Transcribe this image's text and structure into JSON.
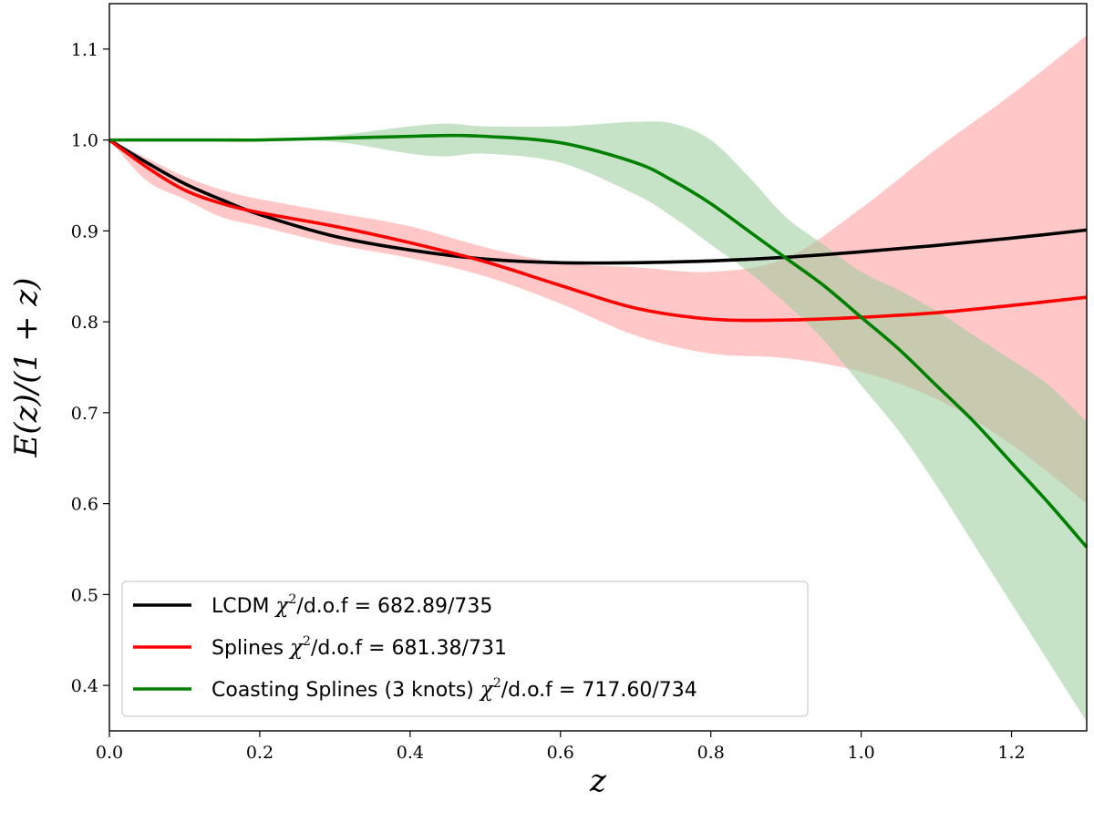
{
  "chart_data": {
    "type": "line",
    "title": "",
    "xlabel": "z",
    "ylabel": "E(z)/(1 + z)",
    "xlim": [
      0.0,
      1.3
    ],
    "ylim": [
      0.35,
      1.15
    ],
    "xticks": [
      0.0,
      0.2,
      0.4,
      0.6,
      0.8,
      1.0,
      1.2
    ],
    "xtick_labels": [
      "0.0",
      "0.2",
      "0.4",
      "0.6",
      "0.8",
      "1.0",
      "1.2"
    ],
    "yticks": [
      0.4,
      0.5,
      0.6,
      0.7,
      0.8,
      0.9,
      1.0,
      1.1
    ],
    "ytick_labels": [
      "0.4",
      "0.5",
      "0.6",
      "0.7",
      "0.8",
      "0.9",
      "1.0",
      "1.1"
    ],
    "grid": false,
    "legend_position": "lower-left",
    "series": [
      {
        "name": "LCDM",
        "legend_prefix": "LCDM",
        "legend_chi": "χ",
        "legend_sup": "2",
        "legend_suffix": "/d.o.f = 682.89/735",
        "color": "#000000",
        "x": [
          0.0,
          0.05,
          0.1,
          0.15,
          0.2,
          0.3,
          0.4,
          0.5,
          0.6,
          0.7,
          0.8,
          0.9,
          1.0,
          1.1,
          1.2,
          1.3
        ],
        "y": [
          1.0,
          0.975,
          0.952,
          0.934,
          0.918,
          0.894,
          0.879,
          0.869,
          0.865,
          0.865,
          0.867,
          0.871,
          0.877,
          0.884,
          0.892,
          0.901
        ]
      },
      {
        "name": "Splines",
        "legend_prefix": "Splines",
        "legend_chi": "χ",
        "legend_sup": "2",
        "legend_suffix": "/d.o.f = 681.38/731",
        "color": "#ff0000",
        "band_color": "#ff9999",
        "x": [
          0.0,
          0.05,
          0.1,
          0.15,
          0.2,
          0.3,
          0.4,
          0.5,
          0.6,
          0.7,
          0.8,
          0.9,
          1.0,
          1.1,
          1.2,
          1.3
        ],
        "y": [
          1.0,
          0.97,
          0.945,
          0.93,
          0.92,
          0.905,
          0.887,
          0.866,
          0.84,
          0.815,
          0.803,
          0.802,
          0.805,
          0.81,
          0.818,
          0.827
        ],
        "lower": [
          1.0,
          0.955,
          0.935,
          0.915,
          0.905,
          0.885,
          0.87,
          0.85,
          0.82,
          0.785,
          0.765,
          0.76,
          0.745,
          0.715,
          0.665,
          0.6
        ],
        "upper": [
          1.0,
          0.98,
          0.96,
          0.945,
          0.935,
          0.92,
          0.905,
          0.882,
          0.865,
          0.86,
          0.855,
          0.87,
          0.925,
          0.99,
          1.05,
          1.115
        ]
      },
      {
        "name": "Coasting Splines (3 knots)",
        "legend_prefix": "Coasting Splines (3 knots)",
        "legend_chi": "χ",
        "legend_sup": "2",
        "legend_suffix": "/d.o.f = 717.60/734",
        "color": "#008000",
        "band_color": "#99cc99",
        "x": [
          0.0,
          0.05,
          0.1,
          0.15,
          0.2,
          0.3,
          0.4,
          0.45,
          0.5,
          0.6,
          0.7,
          0.75,
          0.8,
          0.85,
          0.9,
          0.95,
          1.0,
          1.05,
          1.1,
          1.15,
          1.2,
          1.25,
          1.3
        ],
        "y": [
          1.0,
          1.0,
          1.0,
          1.0,
          1.0,
          1.002,
          1.004,
          1.005,
          1.004,
          0.997,
          0.975,
          0.955,
          0.93,
          0.9,
          0.87,
          0.84,
          0.805,
          0.77,
          0.73,
          0.69,
          0.645,
          0.6,
          0.552
        ],
        "lower": [
          1.0,
          1.0,
          1.0,
          1.0,
          1.0,
          0.998,
          0.985,
          0.982,
          0.985,
          0.975,
          0.94,
          0.915,
          0.885,
          0.855,
          0.82,
          0.78,
          0.73,
          0.68,
          0.62,
          0.555,
          0.49,
          0.425,
          0.36
        ],
        "upper": [
          1.0,
          1.0,
          1.0,
          1.0,
          1.0,
          1.005,
          1.015,
          1.018,
          1.015,
          1.015,
          1.02,
          1.018,
          1.0,
          0.96,
          0.915,
          0.885,
          0.855,
          0.835,
          0.812,
          0.785,
          0.758,
          0.73,
          0.69
        ]
      }
    ]
  }
}
